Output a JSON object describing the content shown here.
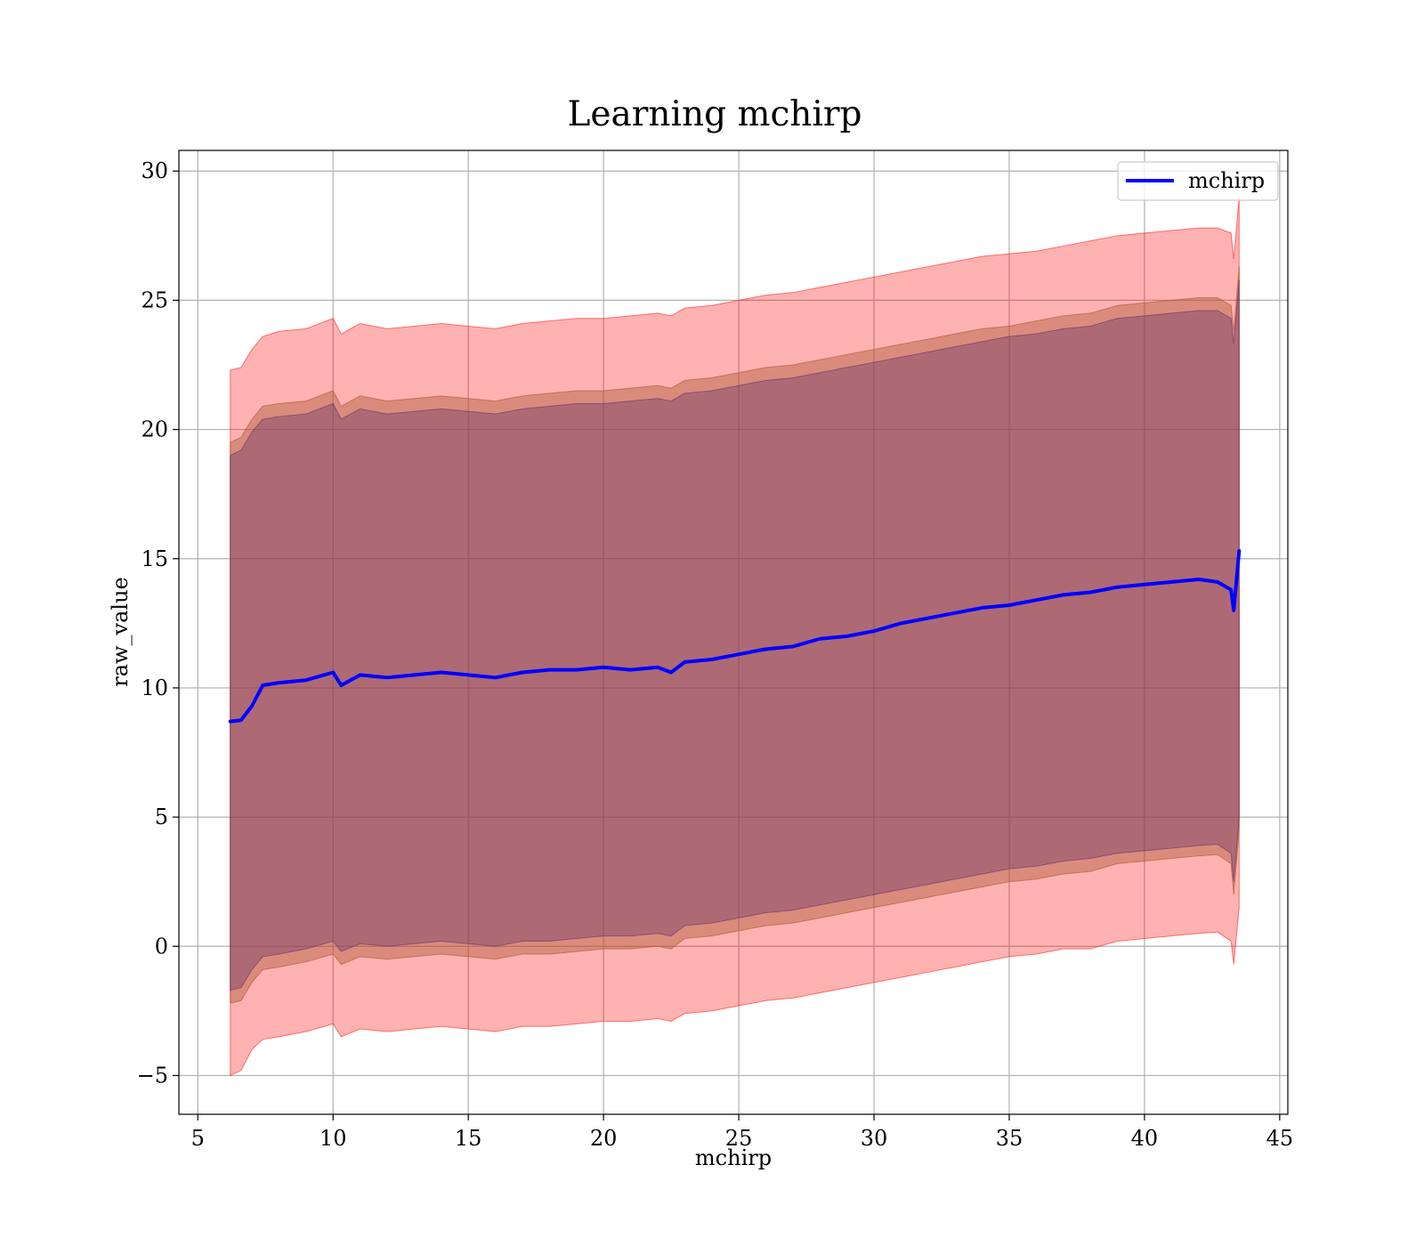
{
  "chart_data": {
    "type": "area",
    "title": "Learning mchirp",
    "xlabel": "mchirp",
    "ylabel": "raw_value",
    "xlim": [
      4.3,
      45.3
    ],
    "ylim": [
      -6.5,
      30.8
    ],
    "x_ticks": [
      5,
      10,
      15,
      20,
      25,
      30,
      35,
      40,
      45
    ],
    "y_ticks": [
      -5,
      0,
      5,
      10,
      15,
      20,
      25,
      30
    ],
    "x_tick_labels": [
      "5",
      "10",
      "15",
      "20",
      "25",
      "30",
      "35",
      "40",
      "45"
    ],
    "y_tick_labels": [
      "−5",
      "0",
      "5",
      "10",
      "15",
      "20",
      "25",
      "30"
    ],
    "grid": true,
    "legend_position": "upper-right",
    "x": [
      6.2,
      6.6,
      7.0,
      7.4,
      8.0,
      9.0,
      10.0,
      10.3,
      11.0,
      12.0,
      13.0,
      14.0,
      15.0,
      16.0,
      17.0,
      18.0,
      19.0,
      20.0,
      21.0,
      22.0,
      22.5,
      23.0,
      24.0,
      25.0,
      26.0,
      27.0,
      28.0,
      29.0,
      30.0,
      31.0,
      32.0,
      33.0,
      34.0,
      35.0,
      36.0,
      37.0,
      38.0,
      39.0,
      40.0,
      41.0,
      42.0,
      42.7,
      43.2,
      43.3,
      43.5
    ],
    "series": [
      {
        "name": "mchirp",
        "color": "#0000ff",
        "values": [
          8.7,
          8.75,
          9.3,
          10.1,
          10.2,
          10.3,
          10.6,
          10.1,
          10.5,
          10.4,
          10.5,
          10.6,
          10.5,
          10.4,
          10.6,
          10.7,
          10.7,
          10.8,
          10.7,
          10.8,
          10.6,
          11.0,
          11.1,
          11.3,
          11.5,
          11.6,
          11.9,
          12.0,
          12.2,
          12.5,
          12.7,
          12.9,
          13.1,
          13.2,
          13.4,
          13.6,
          13.7,
          13.9,
          14.0,
          14.1,
          14.2,
          14.1,
          13.8,
          13.0,
          15.3
        ]
      }
    ],
    "bands": [
      {
        "color": "#ff0000",
        "opacity": 0.3,
        "lower": [
          -5.0,
          -4.8,
          -4.0,
          -3.6,
          -3.5,
          -3.3,
          -3.0,
          -3.5,
          -3.2,
          -3.3,
          -3.2,
          -3.1,
          -3.2,
          -3.3,
          -3.1,
          -3.1,
          -3.0,
          -2.9,
          -2.9,
          -2.8,
          -2.9,
          -2.6,
          -2.5,
          -2.3,
          -2.1,
          -2.0,
          -1.8,
          -1.6,
          -1.4,
          -1.2,
          -1.0,
          -0.8,
          -0.6,
          -0.4,
          -0.3,
          -0.1,
          -0.1,
          0.2,
          0.3,
          0.4,
          0.5,
          0.55,
          0.2,
          -0.7,
          1.5
        ],
        "upper": [
          22.3,
          22.4,
          23.1,
          23.6,
          23.8,
          23.9,
          24.3,
          23.7,
          24.1,
          23.9,
          24.0,
          24.1,
          24.0,
          23.9,
          24.1,
          24.2,
          24.3,
          24.3,
          24.4,
          24.5,
          24.4,
          24.7,
          24.8,
          25.0,
          25.2,
          25.3,
          25.5,
          25.7,
          25.9,
          26.1,
          26.3,
          26.5,
          26.7,
          26.8,
          26.9,
          27.1,
          27.3,
          27.5,
          27.6,
          27.7,
          27.8,
          27.8,
          27.6,
          26.6,
          29.0
        ]
      },
      {
        "color": "#b05a3a",
        "opacity": 0.45,
        "lower": [
          -2.2,
          -2.1,
          -1.4,
          -0.9,
          -0.8,
          -0.6,
          -0.3,
          -0.7,
          -0.4,
          -0.5,
          -0.4,
          -0.3,
          -0.4,
          -0.5,
          -0.3,
          -0.3,
          -0.2,
          -0.1,
          -0.1,
          0.0,
          -0.1,
          0.3,
          0.4,
          0.6,
          0.8,
          0.9,
          1.1,
          1.3,
          1.5,
          1.7,
          1.9,
          2.1,
          2.3,
          2.5,
          2.6,
          2.8,
          2.9,
          3.2,
          3.3,
          3.4,
          3.5,
          3.55,
          3.2,
          2.0,
          4.5
        ],
        "upper": [
          19.5,
          19.7,
          20.4,
          20.9,
          21.0,
          21.1,
          21.5,
          20.9,
          21.3,
          21.1,
          21.2,
          21.3,
          21.2,
          21.1,
          21.3,
          21.4,
          21.5,
          21.5,
          21.6,
          21.7,
          21.6,
          21.9,
          22.0,
          22.2,
          22.4,
          22.5,
          22.7,
          22.9,
          23.1,
          23.3,
          23.5,
          23.7,
          23.9,
          24.0,
          24.2,
          24.4,
          24.5,
          24.8,
          24.9,
          25.0,
          25.1,
          25.1,
          24.8,
          23.8,
          26.3
        ]
      },
      {
        "color": "#5a2f6a",
        "opacity": 0.35,
        "lower": [
          -1.7,
          -1.6,
          -0.9,
          -0.4,
          -0.3,
          -0.1,
          0.2,
          -0.2,
          0.1,
          0.0,
          0.1,
          0.2,
          0.1,
          0.0,
          0.2,
          0.2,
          0.3,
          0.4,
          0.4,
          0.5,
          0.4,
          0.8,
          0.9,
          1.1,
          1.3,
          1.4,
          1.6,
          1.8,
          2.0,
          2.2,
          2.4,
          2.6,
          2.8,
          3.0,
          3.1,
          3.3,
          3.4,
          3.6,
          3.7,
          3.8,
          3.9,
          3.95,
          3.6,
          2.5,
          5.0
        ],
        "upper": [
          19.0,
          19.2,
          19.9,
          20.4,
          20.5,
          20.6,
          21.0,
          20.4,
          20.8,
          20.6,
          20.7,
          20.8,
          20.7,
          20.6,
          20.8,
          20.9,
          21.0,
          21.0,
          21.1,
          21.2,
          21.1,
          21.4,
          21.5,
          21.7,
          21.9,
          22.0,
          22.2,
          22.4,
          22.6,
          22.8,
          23.0,
          23.2,
          23.4,
          23.6,
          23.7,
          23.9,
          24.0,
          24.3,
          24.4,
          24.5,
          24.6,
          24.6,
          24.3,
          23.3,
          25.8
        ]
      }
    ]
  }
}
